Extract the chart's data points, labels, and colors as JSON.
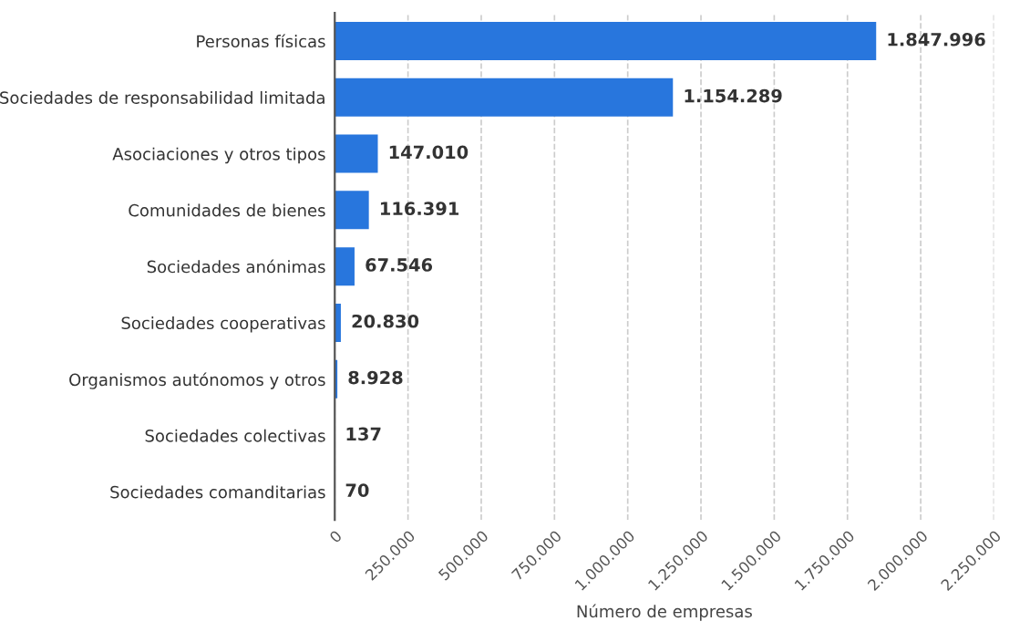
{
  "chart_data": {
    "type": "bar",
    "orientation": "horizontal",
    "xlabel": "Número de empresas",
    "categories": [
      "Personas físicas",
      "Sociedades de responsabilidad limitada",
      "Asociaciones y otros tipos",
      "Comunidades de bienes",
      "Sociedades anónimas",
      "Sociedades cooperativas",
      "Organismos autónomos y otros",
      "Sociedades colectivas",
      "Sociedades comanditarias"
    ],
    "values": [
      1847996,
      1154289,
      147010,
      116391,
      67546,
      20830,
      8928,
      137,
      70
    ],
    "value_labels": [
      "1.847.996",
      "1.154.289",
      "147.010",
      "116.391",
      "67.546",
      "20.830",
      "8.928",
      "137",
      "70"
    ],
    "color": "#2876dd",
    "xlim": [
      0,
      2250000
    ],
    "xticks": [
      0,
      {
        "value": 250000,
        "label": "250.000"
      },
      {
        "value": 500000,
        "label": "500.000"
      },
      {
        "value": 750000,
        "label": "750.000"
      },
      {
        "value": 1000000,
        "label": "1.000.000"
      },
      {
        "value": 1250000,
        "label": "1.250.000"
      },
      {
        "value": 1500000,
        "label": "1.500.000"
      },
      {
        "value": 1750000,
        "label": "1.750.000"
      },
      {
        "value": 2000000,
        "label": "2.000.000"
      },
      {
        "value": 2250000,
        "label": "2.250.000"
      }
    ],
    "grid": "x",
    "line_style": "dashed"
  }
}
